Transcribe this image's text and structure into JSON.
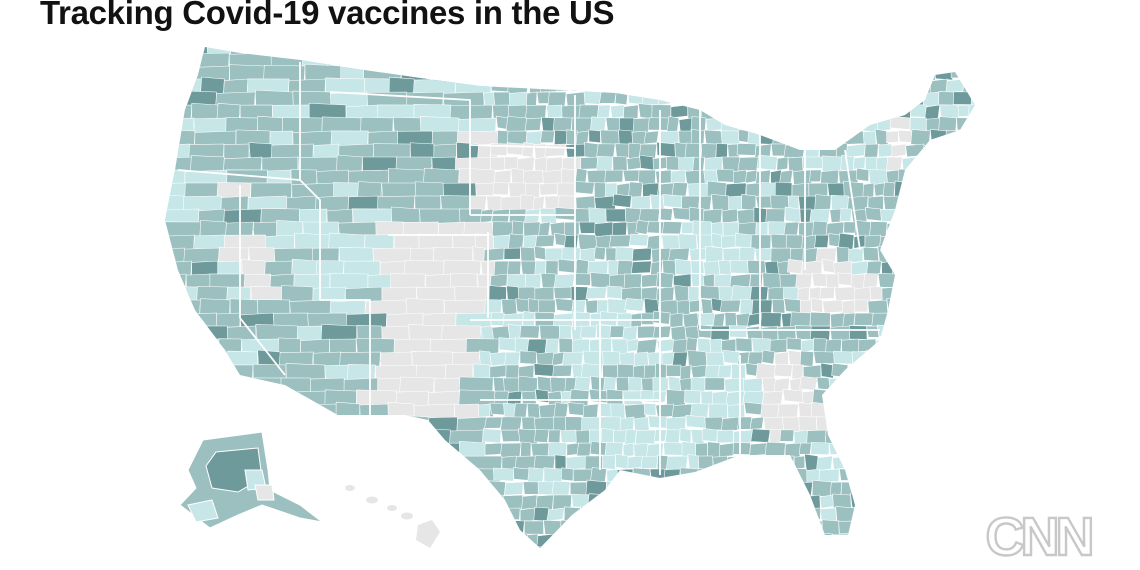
{
  "title": "Tracking Covid-19 vaccines in the US",
  "brand": {
    "logo_text": "CNN"
  },
  "map": {
    "colors": {
      "no_data": "#e6e6e6",
      "light": "#c6e6e8",
      "medium": "#9cc0c0",
      "dark": "#6f9a9c"
    },
    "no_data_states": [
      "South Dakota",
      "Colorado",
      "New Mexico",
      "West Virginia",
      "Virginia",
      "Georgia",
      "Vermont"
    ]
  }
}
